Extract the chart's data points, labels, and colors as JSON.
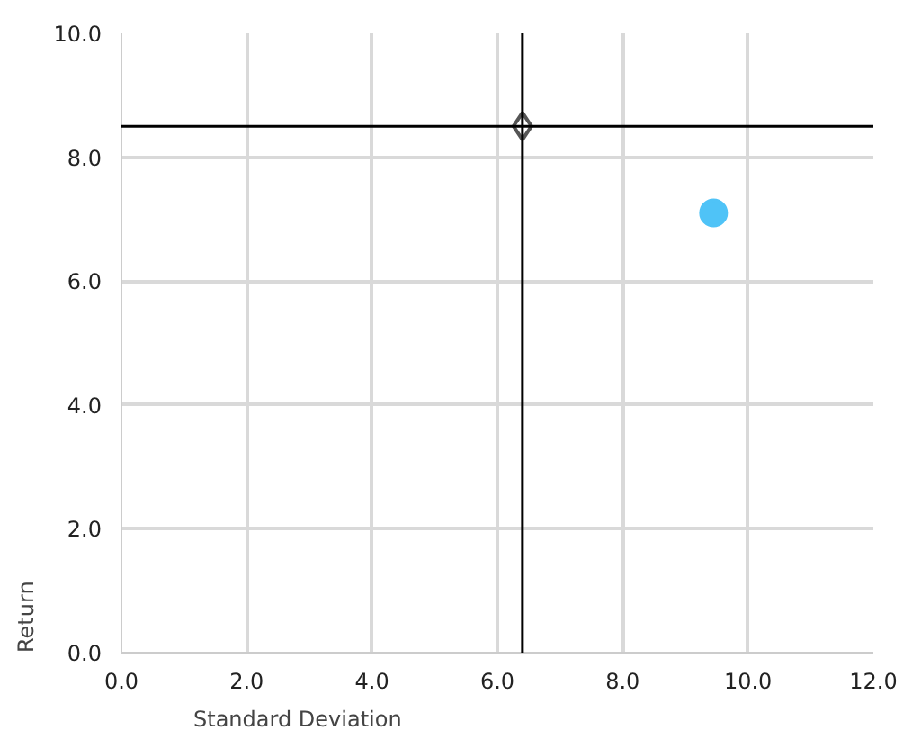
{
  "chart_data": {
    "type": "scatter",
    "xlabel": "Standard Deviation",
    "ylabel": "Return",
    "series": [
      {
        "color": "#4fc3f7",
        "x": [
          9.45
        ],
        "values": [
          7.1
        ],
        "marker": "circle"
      },
      {
        "color": "#555555",
        "x": [
          6.4
        ],
        "values": [
          8.5
        ],
        "marker": "diamond"
      }
    ],
    "ref_lines": [
      {
        "axis": "x",
        "value": 6.4,
        "color": "#000000"
      },
      {
        "axis": "y",
        "value": 8.5,
        "color": "#000000"
      }
    ],
    "xlim": [
      0,
      12
    ],
    "ylim": [
      0,
      10
    ],
    "xticks": [
      {
        "value": 0,
        "label": "0.0"
      },
      {
        "value": 2,
        "label": "2.0"
      },
      {
        "value": 4,
        "label": "4.0"
      },
      {
        "value": 6,
        "label": "6.0"
      },
      {
        "value": 8,
        "label": "8.0"
      },
      {
        "value": 10,
        "label": "10.0"
      },
      {
        "value": 12,
        "label": "12.0"
      }
    ],
    "yticks": [
      {
        "value": 0,
        "label": "0.0"
      },
      {
        "value": 2,
        "label": "2.0"
      },
      {
        "value": 4,
        "label": "4.0"
      },
      {
        "value": 6,
        "label": "6.0"
      },
      {
        "value": 8,
        "label": "8.0"
      },
      {
        "value": 10,
        "label": "10.0"
      }
    ],
    "grid": true
  }
}
